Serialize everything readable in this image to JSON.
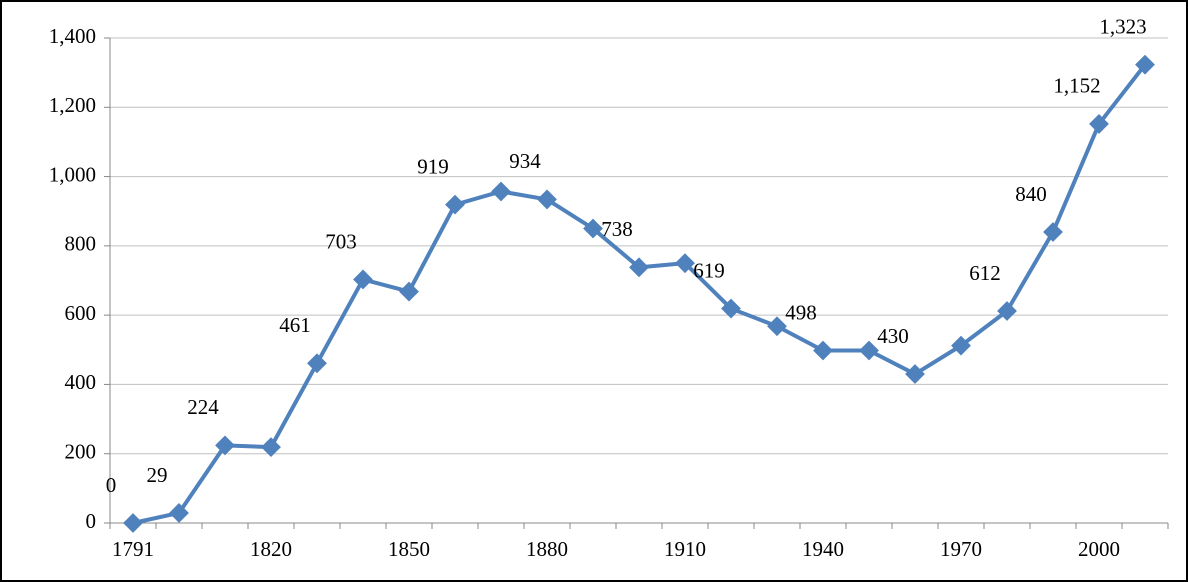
{
  "chart_data": {
    "type": "line",
    "categories": [
      "1791",
      null,
      null,
      "1820",
      null,
      null,
      "1850",
      null,
      null,
      "1880",
      null,
      null,
      "1910",
      null,
      null,
      "1940",
      null,
      null,
      "1970",
      null,
      null,
      "2000",
      null
    ],
    "series": [
      {
        "color": "#4f81bd",
        "values": [
          0,
          29,
          224,
          219,
          461,
          703,
          668,
          919,
          957,
          934,
          850,
          738,
          750,
          619,
          568,
          498,
          498,
          430,
          512,
          612,
          840,
          1152,
          1323
        ],
        "value_labels": [
          "0",
          "29",
          "224",
          null,
          "461",
          "703",
          null,
          "919",
          null,
          "934",
          null,
          "738",
          null,
          "619",
          null,
          "498",
          null,
          "430",
          null,
          "612",
          "840",
          "1,152",
          "1,323"
        ]
      }
    ],
    "ylim": [
      0,
      1400
    ],
    "yticks": [
      0,
      200,
      400,
      600,
      800,
      {
        "value": 1000,
        "label": "1,000"
      },
      {
        "value": 1200,
        "label": "1,200"
      },
      {
        "value": 1400,
        "label": "1,400"
      }
    ],
    "grid": true
  }
}
